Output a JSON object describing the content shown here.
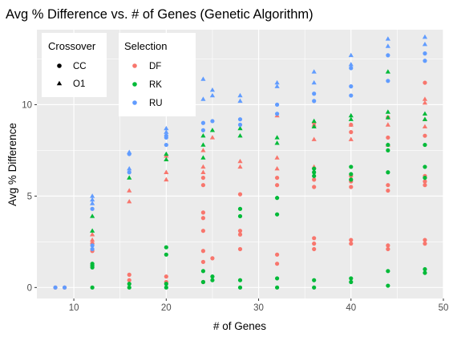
{
  "chart_data": {
    "type": "scatter",
    "title": "Avg % Difference vs. # of Genes (Genetic Algorithm)",
    "xlabel": "# of Genes",
    "ylabel": "Avg % Difference",
    "xlim": [
      6,
      50
    ],
    "ylim": [
      -0.6,
      14.1
    ],
    "xticks": [
      10,
      20,
      30,
      40,
      50
    ],
    "yticks": [
      0,
      5,
      10
    ],
    "grid": true,
    "background": "#ebebeb",
    "legends": [
      {
        "title": "Crossover",
        "items": [
          {
            "label": "CC",
            "shape": "circle"
          },
          {
            "label": "O1",
            "shape": "triangle"
          }
        ]
      },
      {
        "title": "Selection",
        "items": [
          {
            "label": "DF",
            "color": "#f8766d"
          },
          {
            "label": "RK",
            "color": "#00ba38"
          },
          {
            "label": "RU",
            "color": "#619cff"
          }
        ]
      }
    ],
    "series": [
      {
        "selection": "DF",
        "crossover": "CC",
        "color": "#f8766d",
        "shape": "circle",
        "points": [
          [
            8,
            0
          ],
          [
            9,
            0
          ],
          [
            12,
            2.0
          ],
          [
            12,
            2.4
          ],
          [
            16,
            0.7
          ],
          [
            16,
            0.4
          ],
          [
            20,
            0.6
          ],
          [
            20,
            0.3
          ],
          [
            24,
            0.3
          ],
          [
            24,
            1.4
          ],
          [
            24,
            2.0
          ],
          [
            24,
            3.1
          ],
          [
            24,
            3.8
          ],
          [
            24,
            4.1
          ],
          [
            24,
            5.6
          ],
          [
            24,
            6.0
          ],
          [
            25,
            1.6
          ],
          [
            28,
            2.1
          ],
          [
            28,
            2.9
          ],
          [
            28,
            3.1
          ],
          [
            28,
            5.1
          ],
          [
            32,
            1.8
          ],
          [
            32,
            1.3
          ],
          [
            32,
            5.6
          ],
          [
            32,
            6.0
          ],
          [
            36,
            2.1
          ],
          [
            36,
            2.4
          ],
          [
            36,
            2.7
          ],
          [
            36,
            5.5
          ],
          [
            36,
            5.9
          ],
          [
            36,
            9.0
          ],
          [
            40,
            2.4
          ],
          [
            40,
            2.6
          ],
          [
            40,
            5.5
          ],
          [
            40,
            5.8
          ],
          [
            40,
            6.1
          ],
          [
            40,
            8.5
          ],
          [
            40,
            8.9
          ],
          [
            44,
            2.1
          ],
          [
            44,
            2.3
          ],
          [
            44,
            5.3
          ],
          [
            44,
            5.6
          ],
          [
            44,
            8.2
          ],
          [
            44,
            9.3
          ],
          [
            48,
            2.4
          ],
          [
            48,
            2.6
          ],
          [
            48,
            5.6
          ],
          [
            48,
            5.8
          ],
          [
            48,
            6.1
          ],
          [
            48,
            8.3
          ],
          [
            48,
            11.2
          ]
        ]
      },
      {
        "selection": "DF",
        "crossover": "O1",
        "color": "#f8766d",
        "shape": "triangle",
        "points": [
          [
            12,
            2.6
          ],
          [
            12,
            2.9
          ],
          [
            16,
            4.7
          ],
          [
            16,
            5.3
          ],
          [
            20,
            5.9
          ],
          [
            20,
            6.3
          ],
          [
            20,
            7.2
          ],
          [
            24,
            6.3
          ],
          [
            24,
            6.6
          ],
          [
            24,
            7.5
          ],
          [
            25,
            8.2
          ],
          [
            28,
            6.6
          ],
          [
            28,
            6.9
          ],
          [
            32,
            6.5
          ],
          [
            32,
            7.1
          ],
          [
            32,
            9.4
          ],
          [
            36,
            6.6
          ],
          [
            36,
            8.1
          ],
          [
            36,
            8.9
          ],
          [
            40,
            8.1
          ],
          [
            40,
            8.9
          ],
          [
            44,
            7.8
          ],
          [
            44,
            8.9
          ],
          [
            48,
            8.8
          ],
          [
            48,
            9.2
          ],
          [
            48,
            10.1
          ],
          [
            48,
            10.3
          ]
        ]
      },
      {
        "selection": "RK",
        "crossover": "CC",
        "color": "#00ba38",
        "shape": "circle",
        "points": [
          [
            12,
            0
          ],
          [
            12,
            1.1
          ],
          [
            12,
            1.2
          ],
          [
            12,
            1.3
          ],
          [
            16,
            0
          ],
          [
            16,
            0.2
          ],
          [
            20,
            0
          ],
          [
            20,
            0.2
          ],
          [
            20,
            1.8
          ],
          [
            20,
            2.2
          ],
          [
            24,
            0.3
          ],
          [
            24,
            0.9
          ],
          [
            25,
            0.4
          ],
          [
            25,
            0.6
          ],
          [
            28,
            0
          ],
          [
            28,
            0.4
          ],
          [
            28,
            3.9
          ],
          [
            28,
            4.3
          ],
          [
            32,
            0
          ],
          [
            32,
            0.5
          ],
          [
            32,
            4.0
          ],
          [
            32,
            4.9
          ],
          [
            36,
            0
          ],
          [
            36,
            0.4
          ],
          [
            36,
            6.1
          ],
          [
            36,
            6.3
          ],
          [
            36,
            6.5
          ],
          [
            40,
            0.3
          ],
          [
            40,
            0.5
          ],
          [
            40,
            5.9
          ],
          [
            40,
            6.2
          ],
          [
            40,
            6.6
          ],
          [
            44,
            0.1
          ],
          [
            44,
            0.9
          ],
          [
            44,
            6.3
          ],
          [
            44,
            7.5
          ],
          [
            44,
            7.8
          ],
          [
            48,
            0.8
          ],
          [
            48,
            1.0
          ],
          [
            48,
            6.0
          ],
          [
            48,
            6.6
          ],
          [
            48,
            7.8
          ]
        ]
      },
      {
        "selection": "RK",
        "crossover": "O1",
        "color": "#00ba38",
        "shape": "triangle",
        "points": [
          [
            12,
            3.1
          ],
          [
            12,
            3.9
          ],
          [
            16,
            6.0
          ],
          [
            20,
            7.0
          ],
          [
            20,
            7.3
          ],
          [
            24,
            7.1
          ],
          [
            24,
            7.8
          ],
          [
            24,
            8.3
          ],
          [
            25,
            8.6
          ],
          [
            28,
            8.3
          ],
          [
            28,
            8.7
          ],
          [
            32,
            7.9
          ],
          [
            32,
            8.2
          ],
          [
            36,
            8.8
          ],
          [
            36,
            9.1
          ],
          [
            40,
            9.2
          ],
          [
            40,
            9.4
          ],
          [
            44,
            9.3
          ],
          [
            44,
            9.6
          ],
          [
            44,
            11.8
          ],
          [
            48,
            9.2
          ],
          [
            48,
            9.5
          ]
        ]
      },
      {
        "selection": "RU",
        "crossover": "CC",
        "color": "#619cff",
        "shape": "circle",
        "points": [
          [
            8,
            0
          ],
          [
            9,
            0
          ],
          [
            12,
            2.1
          ],
          [
            12,
            2.3
          ],
          [
            12,
            4.3
          ],
          [
            16,
            6.3
          ],
          [
            16,
            7.3
          ],
          [
            20,
            8.2
          ],
          [
            20,
            8.3
          ],
          [
            20,
            7.8
          ],
          [
            24,
            8.6
          ],
          [
            24,
            9.0
          ],
          [
            25,
            9.1
          ],
          [
            28,
            8.9
          ],
          [
            28,
            9.2
          ],
          [
            32,
            9.5
          ],
          [
            32,
            10.0
          ],
          [
            36,
            10.2
          ],
          [
            36,
            10.6
          ],
          [
            40,
            10.5
          ],
          [
            40,
            11.0
          ],
          [
            40,
            12.0
          ],
          [
            44,
            11.3
          ],
          [
            44,
            12.7
          ],
          [
            48,
            12.4
          ],
          [
            48,
            12.8
          ]
        ]
      },
      {
        "selection": "RU",
        "crossover": "O1",
        "color": "#619cff",
        "shape": "triangle",
        "points": [
          [
            12,
            4.6
          ],
          [
            12,
            4.8
          ],
          [
            12,
            5.0
          ],
          [
            16,
            7.4
          ],
          [
            16,
            6.5
          ],
          [
            20,
            8.5
          ],
          [
            20,
            8.7
          ],
          [
            24,
            10.3
          ],
          [
            24,
            11.4
          ],
          [
            25,
            10.8
          ],
          [
            25,
            10.5
          ],
          [
            28,
            10.2
          ],
          [
            28,
            10.5
          ],
          [
            32,
            11.0
          ],
          [
            32,
            11.2
          ],
          [
            36,
            11.2
          ],
          [
            36,
            11.8
          ],
          [
            40,
            12.2
          ],
          [
            40,
            12.7
          ],
          [
            44,
            13.2
          ],
          [
            44,
            13.6
          ],
          [
            48,
            13.3
          ],
          [
            48,
            13.7
          ]
        ]
      }
    ]
  }
}
